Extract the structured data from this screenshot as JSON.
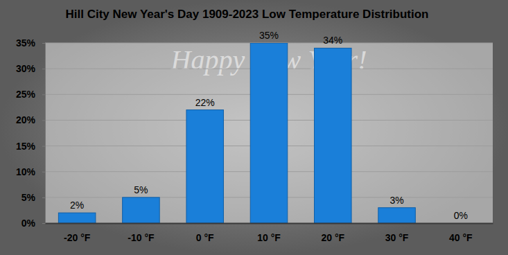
{
  "chart_data": {
    "type": "bar",
    "title": "Hill City New Year's Day 1909-2023 Low Temperature Distribution",
    "annotations": [
      "Happy New Year!"
    ],
    "categories": [
      "-20 °F",
      "-10 °F",
      "0 °F",
      "10 °F",
      "20 °F",
      "30 °F",
      "40 °F"
    ],
    "values": [
      2,
      5,
      22,
      35,
      34,
      3,
      0
    ],
    "value_labels": [
      "2%",
      "5%",
      "22%",
      "35%",
      "34%",
      "3%",
      "0%"
    ],
    "color": "#1a7fd9",
    "ylim": [
      0,
      35
    ],
    "yticks": [
      {
        "value": 0,
        "label": "0%"
      },
      {
        "value": 5,
        "label": "5%"
      },
      {
        "value": 10,
        "label": "10%"
      },
      {
        "value": 15,
        "label": "15%"
      },
      {
        "value": 20,
        "label": "20%"
      },
      {
        "value": 25,
        "label": "25%"
      },
      {
        "value": 30,
        "label": "30%"
      },
      {
        "value": 35,
        "label": "35%"
      }
    ],
    "grid": true,
    "data_labels": true
  }
}
